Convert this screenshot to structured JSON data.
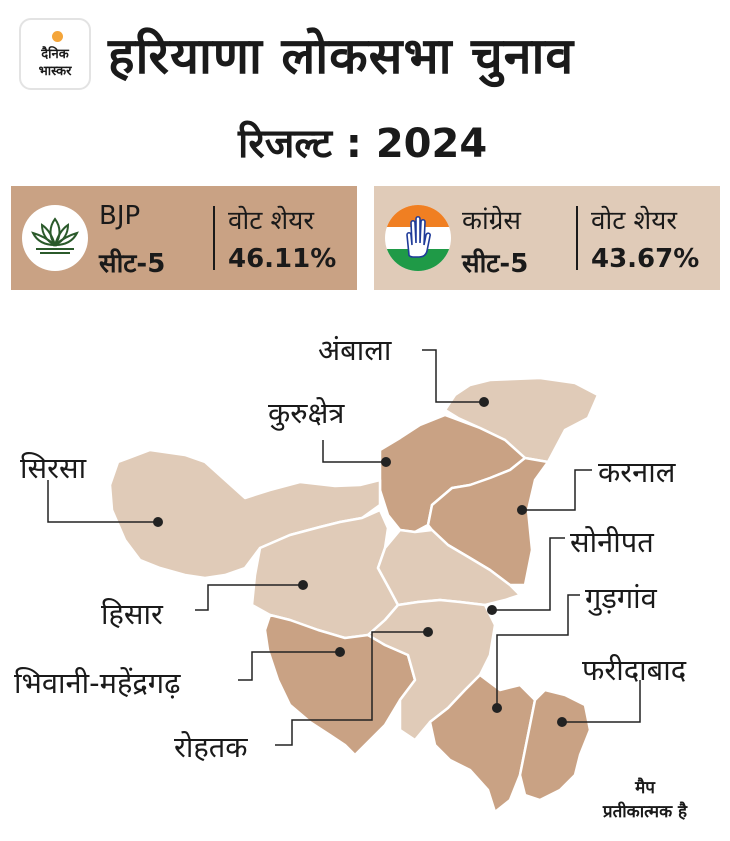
{
  "brand": {
    "line1": "दैनिक",
    "line2": "भास्कर"
  },
  "header": {
    "title": "हरियाणा लोकसभा चुनाव",
    "subtitle": "रिजल्ट : 2024"
  },
  "parties": [
    {
      "name": "BJP",
      "seats": "सीट-5",
      "vote_label": "वोट शेयर",
      "vote_share": "46.11%",
      "symbol": "lotus-icon",
      "color": "#c9a284"
    },
    {
      "name": "कांग्रेस",
      "seats": "सीट-5",
      "vote_label": "वोट शेयर",
      "vote_share": "43.67%",
      "symbol": "hand-icon",
      "color": "#e0cbb8"
    }
  ],
  "constituencies": [
    {
      "name": "अंबाला",
      "winner": "Congress"
    },
    {
      "name": "कुरुक्षेत्र",
      "winner": "BJP"
    },
    {
      "name": "सिरसा",
      "winner": "Congress"
    },
    {
      "name": "करनाल",
      "winner": "BJP"
    },
    {
      "name": "सोनीपत",
      "winner": "Congress"
    },
    {
      "name": "हिसार",
      "winner": "Congress"
    },
    {
      "name": "गुड़गांव",
      "winner": "BJP"
    },
    {
      "name": "भिवानी-महेंद्रगढ़",
      "winner": "BJP"
    },
    {
      "name": "फरीदाबाद",
      "winner": "BJP"
    },
    {
      "name": "रोहतक",
      "winner": "Congress"
    }
  ],
  "colors": {
    "bjp": "#c9a284",
    "congress": "#e0cbb8",
    "marker": "#222222"
  },
  "note": {
    "line1": "मैप",
    "line2": "प्रतीकात्मक है"
  }
}
